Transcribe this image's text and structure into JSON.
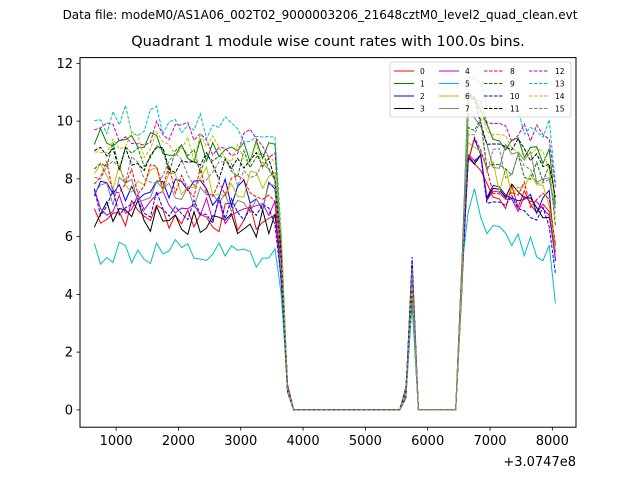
{
  "figure": {
    "suptitle": "Data file: modeM0/AS1A06_002T02_9000003206_21648cztM0_level2_quad_clean.evt",
    "title": "Quadrant 1 module wise count rates with 100.0s bins."
  },
  "chart_data": {
    "type": "line",
    "title": "Quadrant 1 module wise count rates with 100.0s bins.",
    "xlabel": "",
    "ylabel": "",
    "x_offset_label": "+3.0747e8",
    "xlim": [
      420,
      8380
    ],
    "ylim": [
      -0.6,
      12.2
    ],
    "xticks": [
      1000,
      2000,
      3000,
      4000,
      5000,
      6000,
      7000,
      8000
    ],
    "yticks": [
      0,
      2,
      4,
      6,
      8,
      10,
      12
    ],
    "xtick_labels": [
      "1000",
      "2000",
      "3000",
      "4000",
      "5000",
      "6000",
      "7000",
      "8000"
    ],
    "ytick_labels": [
      "0",
      "2",
      "4",
      "6",
      "8",
      "10",
      "12"
    ],
    "legend": {
      "position": "top-right",
      "ncol": 4
    },
    "x_start": 650,
    "bin_width": 100,
    "n_points": 75,
    "series": [
      {
        "name": "0",
        "color": "#ff0000",
        "dashed": false,
        "base": 6.9,
        "second_base": 7.7
      },
      {
        "name": "1",
        "color": "#008000",
        "dashed": false,
        "base": 9.3,
        "second_base": 9.6
      },
      {
        "name": "2",
        "color": "#0000ff",
        "dashed": false,
        "base": 7.7,
        "second_base": 7.9
      },
      {
        "name": "3",
        "color": "#000000",
        "dashed": false,
        "base": 6.8,
        "second_base": 7.7
      },
      {
        "name": "4",
        "color": "#bf00bf",
        "dashed": false,
        "base": 7.2,
        "second_base": 7.5
      },
      {
        "name": "5",
        "color": "#00bfbf",
        "dashed": false,
        "base": 5.5,
        "second_base": 6.2
      },
      {
        "name": "6",
        "color": "#bfbf00",
        "dashed": false,
        "base": 8.1,
        "second_base": 8.3
      },
      {
        "name": "7",
        "color": "#808080",
        "dashed": false,
        "base": 7.6,
        "second_base": 9.0
      },
      {
        "name": "8",
        "color": "#ff0000",
        "dashed": true,
        "base": 8.1,
        "second_base": 8.0
      },
      {
        "name": "9",
        "color": "#008000",
        "dashed": true,
        "base": 8.8,
        "second_base": 8.9
      },
      {
        "name": "10",
        "color": "#0000ff",
        "dashed": true,
        "base": 7.2,
        "second_base": 7.5
      },
      {
        "name": "11",
        "color": "#000000",
        "dashed": true,
        "base": 8.7,
        "second_base": 9.4
      },
      {
        "name": "12",
        "color": "#bf00bf",
        "dashed": true,
        "base": 9.6,
        "second_base": 10.0
      },
      {
        "name": "13",
        "color": "#00bfbf",
        "dashed": true,
        "base": 10.1,
        "second_base": 10.4
      },
      {
        "name": "14",
        "color": "#bfbf00",
        "dashed": true,
        "base": 9.2,
        "second_base": 9.4
      },
      {
        "name": "15",
        "color": "#808080",
        "dashed": true,
        "base": 8.5,
        "second_base": 8.8
      }
    ]
  }
}
